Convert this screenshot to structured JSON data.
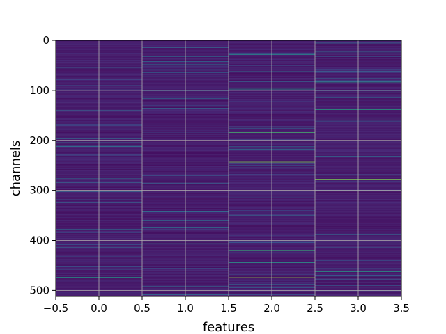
{
  "chart_data": {
    "type": "heatmap",
    "title": "",
    "xlabel": "features",
    "ylabel": "channels",
    "x_categories": [
      0,
      1,
      2,
      3
    ],
    "xlim": [
      -0.5,
      3.5
    ],
    "ylim": [
      512,
      0
    ],
    "rows": 512,
    "colormap": "viridis",
    "x_ticks": [
      "−0.5",
      "0.0",
      "0.5",
      "1.0",
      "1.5",
      "2.0",
      "2.5",
      "3.0",
      "3.5"
    ],
    "y_ticks": [
      "0",
      "100",
      "200",
      "300",
      "400",
      "500"
    ],
    "grid": true,
    "bright_cells": [
      {
        "feature": 0,
        "channel": 473,
        "value": 0.55
      },
      {
        "feature": 1,
        "channel": 95,
        "value": 0.75
      },
      {
        "feature": 1,
        "channel": 406,
        "value": 0.5
      },
      {
        "feature": 2,
        "channel": 28,
        "value": 0.5
      },
      {
        "feature": 2,
        "channel": 97,
        "value": 0.55
      },
      {
        "feature": 2,
        "channel": 184,
        "value": 0.7
      },
      {
        "feature": 2,
        "channel": 243,
        "value": 0.8
      },
      {
        "feature": 2,
        "channel": 420,
        "value": 0.65
      },
      {
        "feature": 2,
        "channel": 444,
        "value": 0.55
      },
      {
        "feature": 2,
        "channel": 474,
        "value": 0.85
      },
      {
        "feature": 3,
        "channel": 83,
        "value": 0.55
      },
      {
        "feature": 3,
        "channel": 138,
        "value": 0.6
      },
      {
        "feature": 3,
        "channel": 277,
        "value": 0.8
      },
      {
        "feature": 3,
        "channel": 387,
        "value": 0.95
      },
      {
        "feature": 3,
        "channel": 462,
        "value": 0.55
      }
    ]
  }
}
